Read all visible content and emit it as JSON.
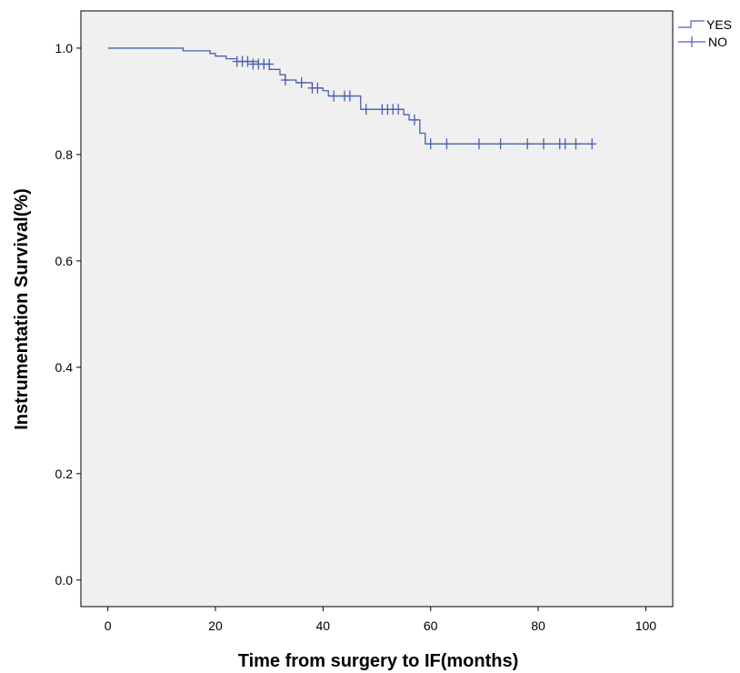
{
  "chart_data": {
    "type": "line",
    "title": "",
    "xlabel": "Time from surgery to IF(months)",
    "ylabel": "Instrumentation Survival(%)",
    "xlim": [
      -5,
      105
    ],
    "ylim": [
      -0.05,
      1.07
    ],
    "x_ticks": [
      0,
      20,
      40,
      60,
      80,
      100
    ],
    "y_ticks": [
      0.0,
      0.2,
      0.4,
      0.6,
      0.8,
      1.0
    ],
    "x_tick_labels": [
      "0",
      "20",
      "40",
      "60",
      "80",
      "100"
    ],
    "y_tick_labels": [
      "0.0",
      "0.2",
      "0.4",
      "0.6",
      "0.8",
      "1.0"
    ],
    "grid": false,
    "legend_position": "top-right-outside",
    "background_color": "#f0f0f0",
    "series": [
      {
        "name": "YES",
        "color": "#4a5fb0",
        "kind": "step",
        "points": [
          [
            0,
            1.0
          ],
          [
            14,
            1.0
          ],
          [
            14,
            0.995
          ],
          [
            19,
            0.995
          ],
          [
            19,
            0.99
          ],
          [
            20,
            0.99
          ],
          [
            20,
            0.985
          ],
          [
            22,
            0.985
          ],
          [
            22,
            0.98
          ],
          [
            24,
            0.98
          ],
          [
            24,
            0.975
          ],
          [
            28,
            0.975
          ],
          [
            28,
            0.97
          ],
          [
            30,
            0.97
          ],
          [
            30,
            0.96
          ],
          [
            32,
            0.96
          ],
          [
            32,
            0.95
          ],
          [
            33,
            0.95
          ],
          [
            33,
            0.94
          ],
          [
            35,
            0.94
          ],
          [
            35,
            0.935
          ],
          [
            38,
            0.935
          ],
          [
            38,
            0.925
          ],
          [
            40,
            0.925
          ],
          [
            40,
            0.92
          ],
          [
            41,
            0.92
          ],
          [
            41,
            0.91
          ],
          [
            47,
            0.91
          ],
          [
            47,
            0.885
          ],
          [
            55,
            0.885
          ],
          [
            55,
            0.875
          ],
          [
            56,
            0.875
          ],
          [
            56,
            0.865
          ],
          [
            58,
            0.865
          ],
          [
            58,
            0.84
          ],
          [
            59,
            0.84
          ],
          [
            59,
            0.82
          ],
          [
            90,
            0.82
          ]
        ]
      },
      {
        "name": "NO",
        "color": "#4a5fb0",
        "kind": "censored",
        "points": [
          [
            24,
            0.975
          ],
          [
            25,
            0.975
          ],
          [
            26,
            0.975
          ],
          [
            27,
            0.97
          ],
          [
            28,
            0.97
          ],
          [
            29,
            0.97
          ],
          [
            30,
            0.97
          ],
          [
            33,
            0.94
          ],
          [
            36,
            0.935
          ],
          [
            38,
            0.925
          ],
          [
            39,
            0.925
          ],
          [
            42,
            0.91
          ],
          [
            44,
            0.91
          ],
          [
            45,
            0.91
          ],
          [
            48,
            0.885
          ],
          [
            51,
            0.885
          ],
          [
            52,
            0.885
          ],
          [
            53,
            0.885
          ],
          [
            54,
            0.885
          ],
          [
            57,
            0.865
          ],
          [
            60,
            0.82
          ],
          [
            63,
            0.82
          ],
          [
            69,
            0.82
          ],
          [
            73,
            0.82
          ],
          [
            78,
            0.82
          ],
          [
            81,
            0.82
          ],
          [
            84,
            0.82
          ],
          [
            85,
            0.82
          ],
          [
            87,
            0.82
          ],
          [
            90,
            0.82
          ]
        ]
      }
    ]
  }
}
